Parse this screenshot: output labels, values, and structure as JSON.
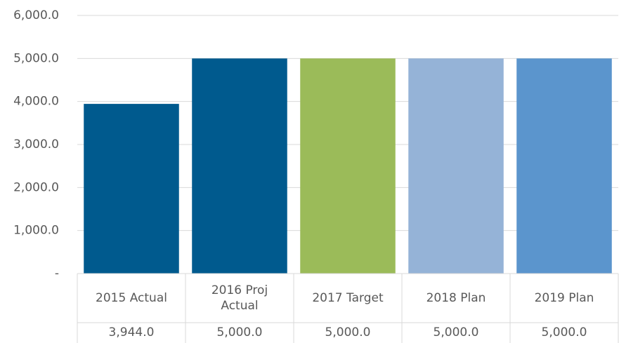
{
  "chart_data": {
    "type": "bar",
    "categories": [
      "2015 Actual",
      "2016 Proj Actual",
      "2017 Target",
      "2018 Plan",
      "2019 Plan"
    ],
    "values": [
      3944,
      5000,
      5000,
      5000,
      5000
    ],
    "value_labels": [
      "3,944.0",
      "5,000.0",
      "5,000.0",
      "5,000.0",
      "5,000.0"
    ],
    "colors": [
      "#005a8e",
      "#005a8e",
      "#9bbb59",
      "#95b3d7",
      "#5b95cd"
    ],
    "ylim": [
      0,
      6000
    ],
    "yticks": [
      {
        "value": 0,
        "label": "-"
      },
      {
        "value": 1000,
        "label": "1,000.0"
      },
      {
        "value": 2000,
        "label": "2,000.0"
      },
      {
        "value": 3000,
        "label": "3,000.0"
      },
      {
        "value": 4000,
        "label": "4,000.0"
      },
      {
        "value": 5000,
        "label": "5,000.0"
      },
      {
        "value": 6000,
        "label": "6,000.0"
      }
    ],
    "grid": true
  }
}
